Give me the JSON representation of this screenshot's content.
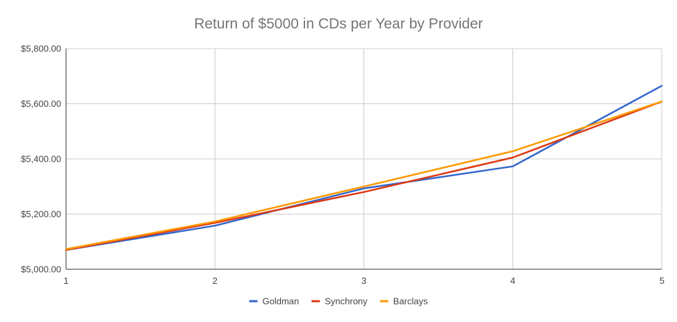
{
  "chart_data": {
    "type": "line",
    "title": "Return of $5000 in CDs per Year by Provider",
    "xlabel": "",
    "ylabel": "",
    "x": [
      1,
      2,
      3,
      4,
      5
    ],
    "x_tick_labels": [
      "1",
      "2",
      "3",
      "4",
      "5"
    ],
    "ylim": [
      5000,
      5800
    ],
    "y_ticks": [
      5000,
      5200,
      5400,
      5600,
      5800
    ],
    "y_tick_labels": [
      "$5,000.00",
      "$5,200.00",
      "$5,400.00",
      "$5,600.00",
      "$5,800.00"
    ],
    "grid": true,
    "legend_position": "bottom",
    "series": [
      {
        "name": "Goldman",
        "color": "#3366cc",
        "values": [
          5070,
          5158,
          5293,
          5373,
          5665
        ]
      },
      {
        "name": "Synchrony",
        "color": "#dc3912",
        "values": [
          5070,
          5168,
          5280,
          5405,
          5608
        ]
      },
      {
        "name": "Barclays",
        "color": "#ff9900",
        "values": [
          5073,
          5173,
          5300,
          5428,
          5608
        ]
      }
    ]
  }
}
